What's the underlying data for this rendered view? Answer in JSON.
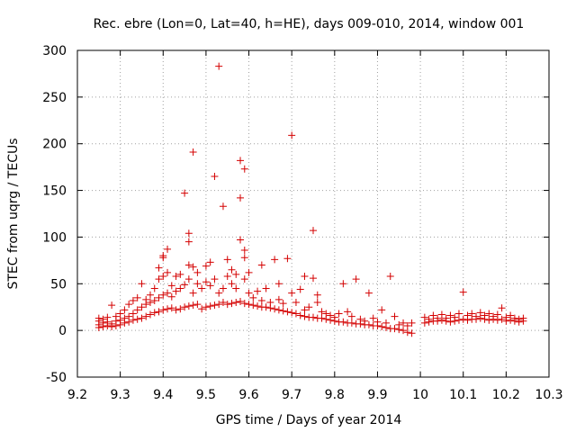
{
  "chart_data": {
    "type": "scatter",
    "title": "Rec. ebre (Lon=0, Lat=40, h=HE), days 009-010, 2014, window 001",
    "xlabel": "GPS time / Days of year 2014",
    "ylabel": "STEC from uqrg / TECUs",
    "xlim": [
      9.2,
      10.3
    ],
    "ylim": [
      -50,
      300
    ],
    "xticks": [
      "9.2",
      "9.3",
      "9.4",
      "9.5",
      "9.6",
      "9.7",
      "9.8",
      "9.9",
      "10",
      "10.1",
      "10.2",
      "10.3"
    ],
    "yticks": [
      "-50",
      "0",
      "50",
      "100",
      "150",
      "200",
      "250",
      "300"
    ],
    "grid": true,
    "marker": "plus",
    "color": "#d40000",
    "series": [
      {
        "name": "",
        "points": [
          [
            9.25,
            3
          ],
          [
            9.25,
            6
          ],
          [
            9.25,
            10
          ],
          [
            9.25,
            13
          ],
          [
            9.26,
            4
          ],
          [
            9.26,
            8
          ],
          [
            9.26,
            12
          ],
          [
            9.27,
            5
          ],
          [
            9.27,
            9
          ],
          [
            9.27,
            14
          ],
          [
            9.28,
            4
          ],
          [
            9.28,
            7
          ],
          [
            9.28,
            27
          ],
          [
            9.29,
            5
          ],
          [
            9.29,
            10
          ],
          [
            9.29,
            15
          ],
          [
            9.3,
            6
          ],
          [
            9.3,
            11
          ],
          [
            9.3,
            18
          ],
          [
            9.31,
            8
          ],
          [
            9.31,
            13
          ],
          [
            9.31,
            22
          ],
          [
            9.32,
            9
          ],
          [
            9.32,
            15
          ],
          [
            9.32,
            28
          ],
          [
            9.33,
            11
          ],
          [
            9.33,
            18
          ],
          [
            9.33,
            32
          ],
          [
            9.34,
            12
          ],
          [
            9.34,
            22
          ],
          [
            9.34,
            35
          ],
          [
            9.35,
            13
          ],
          [
            9.35,
            25
          ],
          [
            9.35,
            50
          ],
          [
            9.36,
            15
          ],
          [
            9.36,
            28
          ],
          [
            9.36,
            33
          ],
          [
            9.37,
            17
          ],
          [
            9.37,
            30
          ],
          [
            9.37,
            38
          ],
          [
            9.38,
            19
          ],
          [
            9.38,
            32
          ],
          [
            9.38,
            45
          ],
          [
            9.39,
            20
          ],
          [
            9.39,
            35
          ],
          [
            9.39,
            55
          ],
          [
            9.39,
            67
          ],
          [
            9.4,
            22
          ],
          [
            9.4,
            38
          ],
          [
            9.4,
            58
          ],
          [
            9.4,
            78
          ],
          [
            9.4,
            80
          ],
          [
            9.41,
            23
          ],
          [
            9.41,
            40
          ],
          [
            9.41,
            62
          ],
          [
            9.41,
            87
          ],
          [
            9.42,
            24
          ],
          [
            9.42,
            36
          ],
          [
            9.42,
            48
          ],
          [
            9.43,
            22
          ],
          [
            9.43,
            42
          ],
          [
            9.43,
            58
          ],
          [
            9.44,
            23
          ],
          [
            9.44,
            45
          ],
          [
            9.44,
            60
          ],
          [
            9.45,
            25
          ],
          [
            9.45,
            49
          ],
          [
            9.45,
            147
          ],
          [
            9.46,
            26
          ],
          [
            9.46,
            55
          ],
          [
            9.46,
            70
          ],
          [
            9.46,
            95
          ],
          [
            9.46,
            104
          ],
          [
            9.47,
            27
          ],
          [
            9.47,
            40
          ],
          [
            9.47,
            68
          ],
          [
            9.47,
            191
          ],
          [
            9.48,
            28
          ],
          [
            9.48,
            50
          ],
          [
            9.48,
            62
          ],
          [
            9.49,
            23
          ],
          [
            9.49,
            45
          ],
          [
            9.5,
            25
          ],
          [
            9.5,
            52
          ],
          [
            9.5,
            69
          ],
          [
            9.51,
            26
          ],
          [
            9.51,
            48
          ],
          [
            9.51,
            73
          ],
          [
            9.52,
            27
          ],
          [
            9.52,
            55
          ],
          [
            9.52,
            165
          ],
          [
            9.53,
            28
          ],
          [
            9.53,
            40
          ],
          [
            9.53,
            283
          ],
          [
            9.54,
            30
          ],
          [
            9.54,
            45
          ],
          [
            9.54,
            133
          ],
          [
            9.55,
            28
          ],
          [
            9.55,
            58
          ],
          [
            9.55,
            76
          ],
          [
            9.56,
            29
          ],
          [
            9.56,
            50
          ],
          [
            9.56,
            65
          ],
          [
            9.57,
            30
          ],
          [
            9.57,
            45
          ],
          [
            9.57,
            60
          ],
          [
            9.58,
            31
          ],
          [
            9.58,
            97
          ],
          [
            9.58,
            142
          ],
          [
            9.58,
            182
          ],
          [
            9.59,
            29
          ],
          [
            9.59,
            55
          ],
          [
            9.59,
            78
          ],
          [
            9.59,
            86
          ],
          [
            9.59,
            173
          ],
          [
            9.6,
            28
          ],
          [
            9.6,
            40
          ],
          [
            9.6,
            62
          ],
          [
            9.61,
            27
          ],
          [
            9.61,
            35
          ],
          [
            9.62,
            26
          ],
          [
            9.62,
            42
          ],
          [
            9.63,
            25
          ],
          [
            9.63,
            32
          ],
          [
            9.63,
            70
          ],
          [
            9.64,
            25
          ],
          [
            9.64,
            45
          ],
          [
            9.65,
            24
          ],
          [
            9.65,
            30
          ],
          [
            9.66,
            23
          ],
          [
            9.66,
            76
          ],
          [
            9.67,
            22
          ],
          [
            9.67,
            33
          ],
          [
            9.67,
            50
          ],
          [
            9.68,
            21
          ],
          [
            9.68,
            29
          ],
          [
            9.69,
            20
          ],
          [
            9.69,
            77
          ],
          [
            9.7,
            19
          ],
          [
            9.7,
            40
          ],
          [
            9.7,
            209
          ],
          [
            9.71,
            18
          ],
          [
            9.71,
            30
          ],
          [
            9.72,
            16
          ],
          [
            9.72,
            44
          ],
          [
            9.73,
            15
          ],
          [
            9.73,
            22
          ],
          [
            9.73,
            58
          ],
          [
            9.74,
            14
          ],
          [
            9.74,
            25
          ],
          [
            9.75,
            14
          ],
          [
            9.75,
            56
          ],
          [
            9.75,
            107
          ],
          [
            9.76,
            13
          ],
          [
            9.76,
            30
          ],
          [
            9.76,
            38
          ],
          [
            9.77,
            13
          ],
          [
            9.77,
            20
          ],
          [
            9.78,
            12
          ],
          [
            9.78,
            18
          ],
          [
            9.79,
            11
          ],
          [
            9.79,
            16
          ],
          [
            9.8,
            10
          ],
          [
            9.8,
            14
          ],
          [
            9.81,
            9
          ],
          [
            9.81,
            18
          ],
          [
            9.82,
            9
          ],
          [
            9.82,
            50
          ],
          [
            9.83,
            8
          ],
          [
            9.83,
            20
          ],
          [
            9.84,
            8
          ],
          [
            9.84,
            15
          ],
          [
            9.85,
            7
          ],
          [
            9.85,
            55
          ],
          [
            9.86,
            7
          ],
          [
            9.86,
            12
          ],
          [
            9.87,
            6
          ],
          [
            9.87,
            10
          ],
          [
            9.88,
            6
          ],
          [
            9.88,
            40
          ],
          [
            9.89,
            5
          ],
          [
            9.89,
            13
          ],
          [
            9.9,
            5
          ],
          [
            9.9,
            9
          ],
          [
            9.91,
            4
          ],
          [
            9.91,
            22
          ],
          [
            9.92,
            3
          ],
          [
            9.92,
            8
          ],
          [
            9.93,
            2
          ],
          [
            9.93,
            58
          ],
          [
            9.94,
            2
          ],
          [
            9.94,
            15
          ],
          [
            9.95,
            1
          ],
          [
            9.95,
            6
          ],
          [
            9.96,
            0
          ],
          [
            9.96,
            8
          ],
          [
            9.97,
            -2
          ],
          [
            9.97,
            5
          ],
          [
            9.98,
            -3
          ],
          [
            9.98,
            8
          ],
          [
            10.01,
            8
          ],
          [
            10.01,
            14
          ],
          [
            10.02,
            9
          ],
          [
            10.02,
            12
          ],
          [
            10.03,
            10
          ],
          [
            10.03,
            16
          ],
          [
            10.04,
            10
          ],
          [
            10.04,
            13
          ],
          [
            10.05,
            11
          ],
          [
            10.05,
            17
          ],
          [
            10.06,
            10
          ],
          [
            10.06,
            13
          ],
          [
            10.07,
            9
          ],
          [
            10.07,
            16
          ],
          [
            10.08,
            10
          ],
          [
            10.08,
            14
          ],
          [
            10.09,
            11
          ],
          [
            10.09,
            18
          ],
          [
            10.1,
            12
          ],
          [
            10.1,
            41
          ],
          [
            10.11,
            11
          ],
          [
            10.11,
            16
          ],
          [
            10.12,
            12
          ],
          [
            10.12,
            18
          ],
          [
            10.13,
            12
          ],
          [
            10.13,
            15
          ],
          [
            10.14,
            13
          ],
          [
            10.14,
            19
          ],
          [
            10.15,
            12
          ],
          [
            10.15,
            16
          ],
          [
            10.16,
            11
          ],
          [
            10.16,
            18
          ],
          [
            10.17,
            12
          ],
          [
            10.17,
            15
          ],
          [
            10.18,
            11
          ],
          [
            10.18,
            17
          ],
          [
            10.19,
            12
          ],
          [
            10.19,
            24
          ],
          [
            10.2,
            10
          ],
          [
            10.2,
            14
          ],
          [
            10.21,
            11
          ],
          [
            10.21,
            16
          ],
          [
            10.22,
            10
          ],
          [
            10.22,
            13
          ],
          [
            10.23,
            9
          ],
          [
            10.23,
            12
          ],
          [
            10.24,
            10
          ],
          [
            10.24,
            13
          ]
        ]
      }
    ]
  }
}
